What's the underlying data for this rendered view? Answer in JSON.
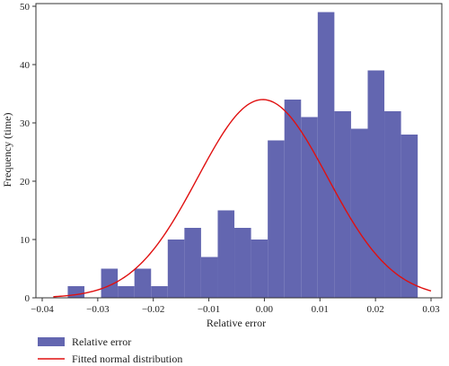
{
  "chart_data": {
    "type": "bar",
    "title": "",
    "xlabel": "Relative error",
    "ylabel": "Frequency (time)",
    "xlim": [
      -0.04,
      0.03
    ],
    "ylim": [
      0,
      50
    ],
    "xticks": [
      -0.04,
      -0.03,
      -0.02,
      -0.01,
      0.0,
      0.01,
      0.02,
      0.03
    ],
    "xtick_labels": [
      "−0.04",
      "−0.03",
      "−0.02",
      "−0.01",
      "0.00",
      "0.01",
      "0.02",
      "0.03"
    ],
    "yticks": [
      0,
      10,
      20,
      30,
      40,
      50
    ],
    "ytick_labels": [
      "0",
      "10",
      "20",
      "30",
      "40",
      "50"
    ],
    "grid": false,
    "legend_position": "below-left",
    "series": [
      {
        "name": "Relative error",
        "type": "histogram",
        "color": "#6366b0",
        "bins": [
          {
            "x0": -0.0354,
            "x1": -0.0324,
            "count": 2
          },
          {
            "x0": -0.0324,
            "x1": -0.0294,
            "count": 0
          },
          {
            "x0": -0.0294,
            "x1": -0.0264,
            "count": 5
          },
          {
            "x0": -0.0264,
            "x1": -0.0234,
            "count": 2
          },
          {
            "x0": -0.0234,
            "x1": -0.0204,
            "count": 5
          },
          {
            "x0": -0.0204,
            "x1": -0.0174,
            "count": 2
          },
          {
            "x0": -0.0174,
            "x1": -0.0144,
            "count": 10
          },
          {
            "x0": -0.0144,
            "x1": -0.0114,
            "count": 12
          },
          {
            "x0": -0.0114,
            "x1": -0.0084,
            "count": 7
          },
          {
            "x0": -0.0084,
            "x1": -0.0054,
            "count": 15
          },
          {
            "x0": -0.0054,
            "x1": -0.0024,
            "count": 12
          },
          {
            "x0": -0.0024,
            "x1": 0.0006,
            "count": 10
          },
          {
            "x0": 0.0006,
            "x1": 0.0036,
            "count": 27
          },
          {
            "x0": 0.0036,
            "x1": 0.0066,
            "count": 34
          },
          {
            "x0": 0.0066,
            "x1": 0.0096,
            "count": 31
          },
          {
            "x0": 0.0096,
            "x1": 0.0126,
            "count": 49
          },
          {
            "x0": 0.0126,
            "x1": 0.0156,
            "count": 32
          },
          {
            "x0": 0.0156,
            "x1": 0.0186,
            "count": 29
          },
          {
            "x0": 0.0186,
            "x1": 0.0216,
            "count": 39
          },
          {
            "x0": 0.0216,
            "x1": 0.0246,
            "count": 32
          },
          {
            "x0": 0.0246,
            "x1": 0.0276,
            "count": 28
          }
        ]
      },
      {
        "name": "Fitted normal distribution",
        "type": "line",
        "color": "#e01010",
        "mean": -0.0003,
        "std": 0.0117,
        "peak": 34.0,
        "x_range": [
          -0.038,
          0.03
        ]
      }
    ]
  }
}
